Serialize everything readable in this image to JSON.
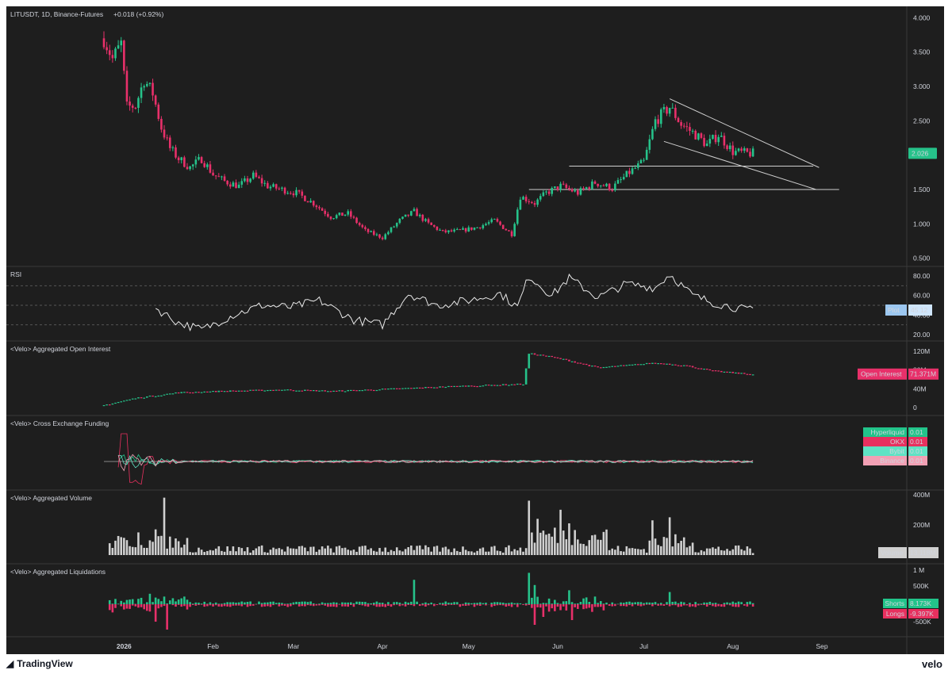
{
  "header": {
    "symbol_line": "LITUSDT, 1D, Binance-Futures",
    "change": "+0.018 (+0.92%)"
  },
  "price_axis": {
    "ticks": [
      "4.000",
      "3.500",
      "3.000",
      "2.500",
      "2.026",
      "1.500",
      "1.000",
      "0.500"
    ],
    "last_price_badge": "2.026"
  },
  "time_axis": {
    "labels": [
      "2026",
      "Feb",
      "Mar",
      "Apr",
      "May",
      "Jun",
      "Jul",
      "Aug",
      "Sep"
    ]
  },
  "panes": {
    "rsi": {
      "title": "RSI",
      "ticks": [
        "80.00",
        "60.00",
        "40.00",
        "20.00"
      ],
      "badge_label": "Plot",
      "badge_value": "45.12"
    },
    "open_interest": {
      "title": "<Velo> Aggregated Open Interest",
      "ticks": [
        "120M",
        "80M",
        "40M",
        "0"
      ],
      "badge_label": "Open Interest",
      "badge_value": "71.371M"
    },
    "funding": {
      "title": "<Velo> Cross Exchange Funding",
      "badges": [
        {
          "label": "Hyperliquid",
          "value": "0.01",
          "color": "#22c48a"
        },
        {
          "label": "OKX",
          "value": "0.01",
          "color": "#e8305f"
        },
        {
          "label": "Bybit",
          "value": "0.01",
          "color": "#5fe3c4"
        },
        {
          "label": "Binance",
          "value": "0.01",
          "color": "#f2a0b4"
        }
      ]
    },
    "volume": {
      "title": "<Velo> Aggregated Volume",
      "ticks": [
        "400M",
        "200M"
      ],
      "badge_label": "Volume",
      "badge_value": "13.118M"
    },
    "liquidations": {
      "title": "<Velo> Aggregated Liquidations",
      "ticks": [
        "1 M",
        "500K",
        "-500K"
      ],
      "badges": [
        {
          "label": "Shorts",
          "value": "8.173K",
          "color": "#22c48a"
        },
        {
          "label": "Longs",
          "value": "-9.397K",
          "color": "#e8305f"
        }
      ]
    }
  },
  "footer": {
    "left": "TradingView",
    "right": "velo"
  },
  "colors": {
    "up": "#26c28a",
    "down": "#e8306a",
    "bg": "#1e1e1e",
    "text": "#d1d4dc",
    "line": "#cfcfcf"
  },
  "chart_data": {
    "type": "candlestick",
    "title": "LITUSDT, 1D, Binance-Futures",
    "x_start": "2025-12-25",
    "x_end": "2026-08-08",
    "ylim": [
      0.45,
      4.05
    ],
    "close_anchors": [
      [
        "2025-12-25",
        3.7
      ],
      [
        "2025-12-28",
        3.4
      ],
      [
        "2025-12-31",
        3.62
      ],
      [
        "2026-01-02",
        2.7
      ],
      [
        "2026-01-05",
        2.72
      ],
      [
        "2026-01-08",
        3.1
      ],
      [
        "2026-01-11",
        2.9
      ],
      [
        "2026-01-14",
        2.4
      ],
      [
        "2026-01-17",
        2.1
      ],
      [
        "2026-01-20",
        1.95
      ],
      [
        "2026-01-24",
        1.82
      ],
      [
        "2026-01-28",
        1.95
      ],
      [
        "2026-02-01",
        1.72
      ],
      [
        "2026-02-05",
        1.62
      ],
      [
        "2026-02-10",
        1.55
      ],
      [
        "2026-02-15",
        1.7
      ],
      [
        "2026-02-20",
        1.55
      ],
      [
        "2026-02-25",
        1.5
      ],
      [
        "2026-03-02",
        1.45
      ],
      [
        "2026-03-08",
        1.3
      ],
      [
        "2026-03-14",
        1.1
      ],
      [
        "2026-03-20",
        1.15
      ],
      [
        "2026-03-26",
        0.9
      ],
      [
        "2026-04-01",
        0.8
      ],
      [
        "2026-04-07",
        1.05
      ],
      [
        "2026-04-12",
        1.18
      ],
      [
        "2026-04-17",
        1.0
      ],
      [
        "2026-04-22",
        0.88
      ],
      [
        "2026-04-28",
        0.9
      ],
      [
        "2026-05-04",
        0.95
      ],
      [
        "2026-05-10",
        1.05
      ],
      [
        "2026-05-16",
        0.85
      ],
      [
        "2026-05-19",
        1.4
      ],
      [
        "2026-05-24",
        1.3
      ],
      [
        "2026-05-28",
        1.45
      ],
      [
        "2026-06-02",
        1.55
      ],
      [
        "2026-06-08",
        1.45
      ],
      [
        "2026-06-14",
        1.6
      ],
      [
        "2026-06-20",
        1.52
      ],
      [
        "2026-06-26",
        1.75
      ],
      [
        "2026-07-01",
        1.9
      ],
      [
        "2026-07-05",
        2.5
      ],
      [
        "2026-07-10",
        2.7
      ],
      [
        "2026-07-14",
        2.45
      ],
      [
        "2026-07-19",
        2.3
      ],
      [
        "2026-07-23",
        2.15
      ],
      [
        "2026-07-27",
        2.3
      ],
      [
        "2026-08-01",
        2.05
      ],
      [
        "2026-08-06",
        2.026
      ]
    ],
    "drawings": {
      "trend_upper": [
        [
          "2026-07-10",
          2.82
        ],
        [
          "2026-08-31",
          1.82
        ]
      ],
      "trend_lower": [
        [
          "2026-07-08",
          2.2
        ],
        [
          "2026-08-30",
          1.5
        ]
      ],
      "hline_1": {
        "from": "2026-06-05",
        "to": "2026-08-29",
        "price": 1.84
      },
      "hline_2": {
        "from": "2026-05-22",
        "to": "2026-09-07",
        "price": 1.5
      }
    },
    "rsi": {
      "ylim": [
        15,
        85
      ],
      "levels": [
        70,
        50,
        30
      ],
      "anchors": [
        [
          "2026-01-12",
          47
        ],
        [
          "2026-01-20",
          32
        ],
        [
          "2026-01-28",
          25
        ],
        [
          "2026-02-08",
          40
        ],
        [
          "2026-02-18",
          50
        ],
        [
          "2026-02-28",
          48
        ],
        [
          "2026-03-10",
          55
        ],
        [
          "2026-03-22",
          35
        ],
        [
          "2026-04-01",
          30
        ],
        [
          "2026-04-10",
          62
        ],
        [
          "2026-04-20",
          50
        ],
        [
          "2026-05-01",
          55
        ],
        [
          "2026-05-12",
          62
        ],
        [
          "2026-05-18",
          48
        ],
        [
          "2026-05-22",
          80
        ],
        [
          "2026-05-30",
          60
        ],
        [
          "2026-06-05",
          78
        ],
        [
          "2026-06-15",
          58
        ],
        [
          "2026-06-25",
          72
        ],
        [
          "2026-07-05",
          68
        ],
        [
          "2026-07-10",
          82
        ],
        [
          "2026-07-18",
          60
        ],
        [
          "2026-07-26",
          52
        ],
        [
          "2026-08-06",
          45.12
        ]
      ]
    },
    "open_interest": {
      "ylim": [
        0,
        125
      ],
      "unit": "M",
      "anchors": [
        [
          "2025-12-25",
          5
        ],
        [
          "2026-01-05",
          20
        ],
        [
          "2026-01-20",
          32
        ],
        [
          "2026-02-05",
          35
        ],
        [
          "2026-02-25",
          38
        ],
        [
          "2026-03-15",
          35
        ],
        [
          "2026-04-05",
          40
        ],
        [
          "2026-04-25",
          45
        ],
        [
          "2026-05-10",
          48
        ],
        [
          "2026-05-20",
          50
        ],
        [
          "2026-05-22",
          115
        ],
        [
          "2026-05-28",
          110
        ],
        [
          "2026-06-05",
          100
        ],
        [
          "2026-06-15",
          85
        ],
        [
          "2026-07-05",
          95
        ],
        [
          "2026-07-15",
          90
        ],
        [
          "2026-07-25",
          78
        ],
        [
          "2026-08-06",
          71.371
        ]
      ]
    },
    "volume": {
      "ylim": [
        0,
        420
      ],
      "unit": "M",
      "spikes": [
        [
          "2026-01-06",
          150
        ],
        [
          "2026-01-15",
          380
        ],
        [
          "2026-01-12",
          170
        ],
        [
          "2026-05-22",
          360
        ],
        [
          "2026-05-25",
          240
        ],
        [
          "2026-06-02",
          300
        ],
        [
          "2026-06-05",
          210
        ],
        [
          "2026-07-04",
          230
        ],
        [
          "2026-07-10",
          250
        ]
      ],
      "last": 13.118
    },
    "liquidations": {
      "ylim": [
        -950,
        1100
      ],
      "unit": "K",
      "last_shorts": 8.173,
      "last_longs": -9.397
    }
  }
}
